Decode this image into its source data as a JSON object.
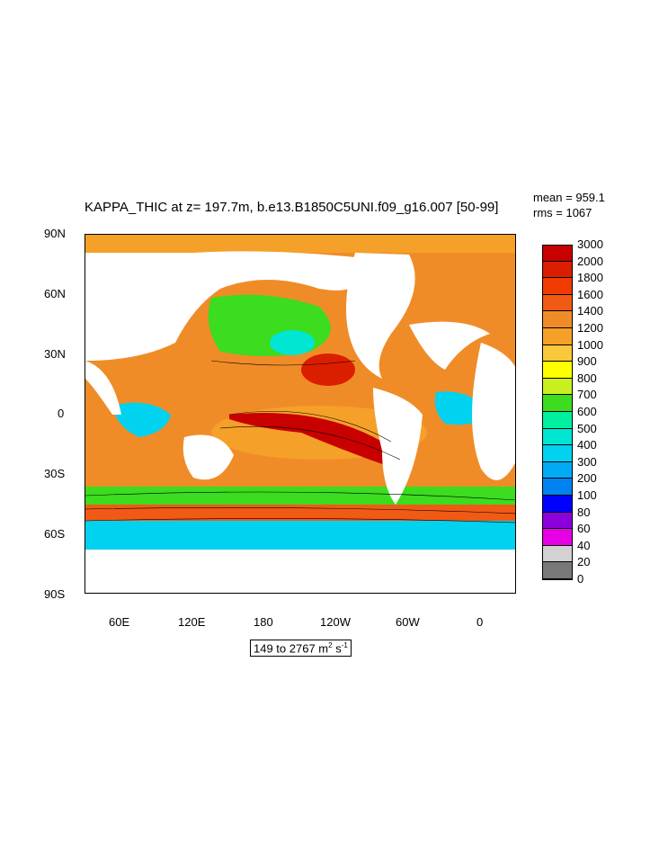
{
  "title": "KAPPA_THIC at z= 197.7m, b.e13.B1850C5UNI.f09_g16.007 [50-99]",
  "stats": {
    "mean": "mean = 959.1",
    "rms": "rms = 1067"
  },
  "lat_labels": [
    "90N",
    "60N",
    "30N",
    "0",
    "30S",
    "60S",
    "90S"
  ],
  "lon_labels": [
    "60E",
    "120E",
    "180",
    "120W",
    "60W",
    "0"
  ],
  "legend": {
    "levels": [
      "3000",
      "2000",
      "1800",
      "1600",
      "1400",
      "1200",
      "1000",
      "900",
      "800",
      "700",
      "600",
      "500",
      "400",
      "300",
      "200",
      "100",
      "80",
      "60",
      "40",
      "20",
      "0"
    ],
    "colors": [
      "#c80000",
      "#dc1e00",
      "#f03c00",
      "#f05a14",
      "#f08c28",
      "#f5a028",
      "#fac83c",
      "#ffff00",
      "#c8f01e",
      "#3cdc1e",
      "#00f0a0",
      "#00e6d2",
      "#00d2f0",
      "#00aaf5",
      "#0082f0",
      "#0000ff",
      "#8c00dc",
      "#e600e6",
      "#d2d2d2",
      "#787878"
    ]
  },
  "range": {
    "prefix": "149 to 2767 m",
    "sup1": "2",
    "mid": " s",
    "sup2": "-1"
  }
}
